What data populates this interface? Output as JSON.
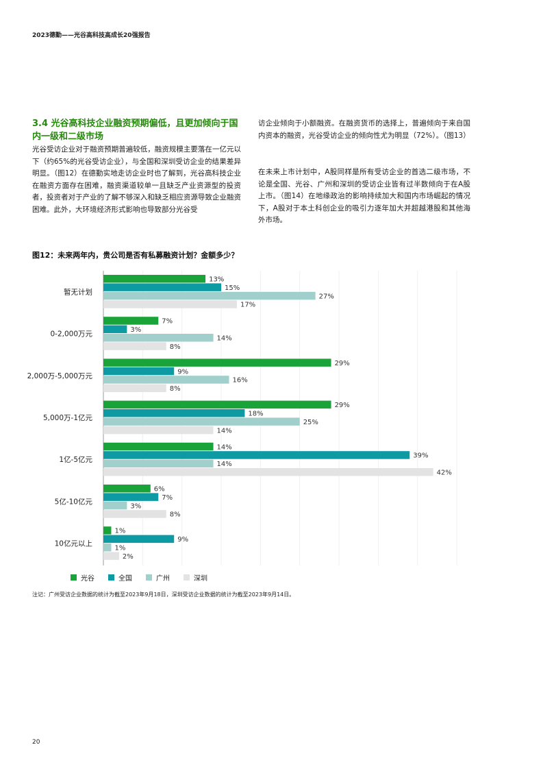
{
  "header": {
    "running_title": "2023德勤——光谷高科技高成长20强报告"
  },
  "section": {
    "title": "3.4 光谷高科技企业融资预期偏低，且更加倾向于国内一级和二级市场",
    "left_paragraph": "光谷受访企业对于融资预期普遍较低，融资规模主要落在一亿元以下（约65%的光谷受访企业），与全国和深圳受访企业的结果差异明显。（图12）在德勤实地走访企业时也了解到，光谷高科技企业在融资方面存在困难，融资渠道较单一且缺乏产业资源型的投资者，投资者对于产业的了解不够深入和缺乏相应资源导致企业融资困难。此外，大环境经济形式影响也导致部分光谷受",
    "right_paragraph_1": "访企业倾向于小额融资。在融资货币的选择上，普遍倾向于来自国内资本的融资，光谷受访企业的倾向性尤为明显（72%）。（图13）",
    "right_paragraph_2": "在未来上市计划中，A股同样是所有受访企业的首选二级市场，不论是全国、光谷、广州和深圳的受访企业皆有过半数倾向于在A股上市。（图14）在地缘政治的影响持续加大和国内市场崛起的情况下，A股对于本土科创企业的吸引力逐年加大并超越港股和其他海外市场。"
  },
  "figure": {
    "title": "图12：未来两年内，贵公司是否有私募融资计划？金额多少？",
    "note": "注记：广州受访企业数据的统计为截至2023年9月18日，深圳受访企业数据的统计为截至2023年9月14日。"
  },
  "chart_data": {
    "type": "bar",
    "orientation": "horizontal",
    "categories": [
      "暂无计划",
      "0-2,000万元",
      "2,000万-5,000万元",
      "5,000万-1亿元",
      "1亿-5亿元",
      "5亿-10亿元",
      "10亿元以上"
    ],
    "series": [
      {
        "name": "光谷",
        "color": "#1aa339",
        "values": [
          13,
          7,
          29,
          29,
          14,
          6,
          1
        ]
      },
      {
        "name": "全国",
        "color": "#0d9aa3",
        "values": [
          15,
          3,
          9,
          18,
          39,
          7,
          9
        ]
      },
      {
        "name": "广州",
        "color": "#a1cfcb",
        "values": [
          27,
          14,
          16,
          25,
          14,
          3,
          1
        ]
      },
      {
        "name": "深圳",
        "color": "#e3e3e3",
        "values": [
          17,
          8,
          8,
          14,
          42,
          8,
          2
        ]
      }
    ],
    "value_suffix": "%",
    "xlim": [
      0,
      45
    ],
    "grid": true,
    "legend": "bottom-left"
  },
  "page": {
    "number": "20"
  }
}
